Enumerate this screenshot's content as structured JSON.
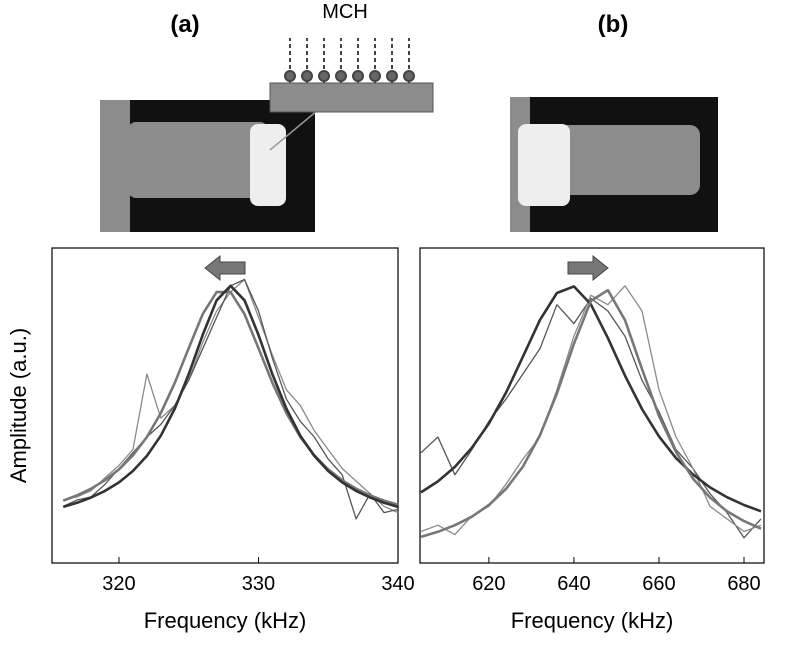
{
  "chart_data": [
    {
      "type": "line",
      "title": "(a)",
      "annotation": "MCH",
      "xlabel": "Frequency (kHz)",
      "ylabel": "Amplitude (a.u.)",
      "x": [
        316,
        317,
        318,
        319,
        320,
        321,
        322,
        323,
        324,
        325,
        326,
        327,
        328,
        329,
        330,
        331,
        332,
        333,
        334,
        335,
        336,
        337,
        338,
        339,
        340
      ],
      "xlim": [
        315.2,
        340
      ],
      "xticks": [
        320,
        330,
        340
      ],
      "ylim": [
        0,
        1
      ],
      "series": [
        {
          "color": "#8a8a8a",
          "width": 1.3,
          "values": [
            0.2,
            0.21,
            0.23,
            0.27,
            0.31,
            0.36,
            0.6,
            0.46,
            0.5,
            0.58,
            0.7,
            0.8,
            0.86,
            0.9,
            0.78,
            0.66,
            0.55,
            0.5,
            0.42,
            0.36,
            0.3,
            0.26,
            0.22,
            0.18,
            0.16
          ]
        },
        {
          "color": "#555555",
          "width": 1.3,
          "values": [
            0.18,
            0.2,
            0.21,
            0.25,
            0.3,
            0.35,
            0.4,
            0.44,
            0.5,
            0.58,
            0.68,
            0.78,
            0.88,
            0.9,
            0.8,
            0.65,
            0.52,
            0.45,
            0.4,
            0.33,
            0.28,
            0.14,
            0.22,
            0.16,
            0.17
          ]
        },
        {
          "color": "#777777",
          "width": 2.6,
          "values": [
            0.198,
            0.215,
            0.236,
            0.263,
            0.297,
            0.342,
            0.4,
            0.476,
            0.572,
            0.682,
            0.79,
            0.86,
            0.86,
            0.79,
            0.682,
            0.572,
            0.476,
            0.4,
            0.342,
            0.297,
            0.263,
            0.236,
            0.215,
            0.198,
            0.185
          ]
        },
        {
          "color": "#333333",
          "width": 2.6,
          "values": [
            0.178,
            0.191,
            0.208,
            0.229,
            0.256,
            0.292,
            0.34,
            0.404,
            0.49,
            0.599,
            0.724,
            0.834,
            0.88,
            0.834,
            0.724,
            0.599,
            0.49,
            0.404,
            0.34,
            0.292,
            0.256,
            0.229,
            0.208,
            0.191,
            0.178
          ]
        }
      ]
    },
    {
      "type": "line",
      "title": "(b)",
      "xlabel": "Frequency (kHz)",
      "x": [
        604,
        608,
        612,
        616,
        620,
        624,
        628,
        632,
        636,
        640,
        644,
        648,
        652,
        656,
        660,
        664,
        668,
        672,
        676,
        680,
        684
      ],
      "xlim": [
        603.8,
        684.7
      ],
      "xticks": [
        620,
        640,
        660,
        680
      ],
      "ylim": [
        0,
        1
      ],
      "series": [
        {
          "color": "#555555",
          "width": 1.3,
          "values": [
            0.35,
            0.4,
            0.28,
            0.36,
            0.45,
            0.52,
            0.6,
            0.68,
            0.82,
            0.76,
            0.84,
            0.8,
            0.72,
            0.58,
            0.48,
            0.36,
            0.3,
            0.22,
            0.16,
            0.08,
            0.14
          ]
        },
        {
          "color": "#8a8a8a",
          "width": 1.3,
          "values": [
            0.1,
            0.12,
            0.09,
            0.15,
            0.18,
            0.25,
            0.33,
            0.4,
            0.55,
            0.72,
            0.85,
            0.82,
            0.88,
            0.8,
            0.55,
            0.4,
            0.3,
            0.18,
            0.14,
            0.1,
            0.12
          ]
        },
        {
          "color": "#333333",
          "width": 2.6,
          "values": [
            0.224,
            0.259,
            0.305,
            0.366,
            0.443,
            0.54,
            0.655,
            0.771,
            0.857,
            0.878,
            0.821,
            0.714,
            0.595,
            0.489,
            0.402,
            0.333,
            0.281,
            0.24,
            0.209,
            0.184,
            0.164
          ]
        },
        {
          "color": "#777777",
          "width": 2.6,
          "values": [
            0.083,
            0.099,
            0.12,
            0.147,
            0.184,
            0.235,
            0.306,
            0.405,
            0.538,
            0.696,
            0.832,
            0.866,
            0.771,
            0.616,
            0.467,
            0.352,
            0.268,
            0.208,
            0.164,
            0.133,
            0.109
          ]
        }
      ]
    }
  ]
}
